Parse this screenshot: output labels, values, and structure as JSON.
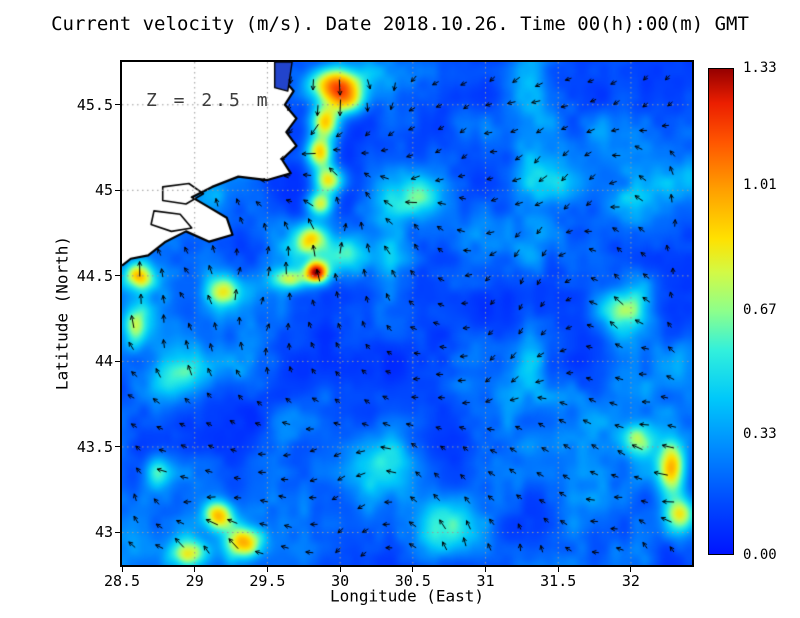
{
  "title": "Current velocity (m/s). Date 2018.10.26. Time 00(h):00(m) GMT",
  "annotation": "Z = 2.5 m",
  "axes": {
    "xlabel": "Longitude (East)",
    "ylabel": "Latitude (North)",
    "x_ticks": [
      28.5,
      29,
      29.5,
      30,
      30.5,
      31,
      31.5,
      32
    ],
    "x_tick_labels": [
      "28.5",
      "29",
      "29.5",
      "30",
      "30.5",
      "31",
      "31.5",
      "32"
    ],
    "y_ticks": [
      43,
      43.5,
      44,
      44.5,
      45,
      45.5
    ],
    "y_tick_labels": [
      "43",
      "43.5",
      "44",
      "44.5",
      "45",
      "45.5"
    ],
    "grid": "dotted"
  },
  "colorbar": {
    "min": 0,
    "max": 1.33,
    "tick_labels": [
      "1.33",
      "1.01",
      "0.67",
      "0.33",
      "0.00"
    ],
    "tick_values": [
      1.33,
      1.01,
      0.67,
      0.33,
      0.0
    ]
  },
  "colors": {
    "background": "#ffffff",
    "land": "#ffffff",
    "coast": "#000000",
    "grid": "#9a9a9a",
    "arrow": "#000000",
    "river": "#2244cc",
    "annotation": "#3d3d3d"
  },
  "chart_data": {
    "type": "heatmap",
    "quantity": "current speed",
    "units": "m/s",
    "depth_m": 2.5,
    "date": "2018.10.26",
    "time_gmt": "00:00",
    "x_range": [
      28.5,
      32.42
    ],
    "y_range": [
      42.81,
      45.75
    ],
    "value_range": [
      0,
      1.33
    ],
    "colormap_stops": [
      [
        0.0,
        0,
        20,
        255
      ],
      [
        0.1,
        0,
        70,
        255
      ],
      [
        0.22,
        0,
        140,
        255
      ],
      [
        0.32,
        0,
        200,
        250
      ],
      [
        0.42,
        50,
        240,
        220
      ],
      [
        0.5,
        140,
        255,
        140
      ],
      [
        0.58,
        210,
        250,
        70
      ],
      [
        0.65,
        255,
        225,
        0
      ],
      [
        0.75,
        255,
        160,
        0
      ],
      [
        0.85,
        255,
        85,
        0
      ],
      [
        0.93,
        235,
        30,
        0
      ],
      [
        1.0,
        150,
        0,
        0
      ]
    ],
    "noise": {
      "seed": 7,
      "scale": 3.0,
      "base": 0.05,
      "amp": 0.5,
      "gamma": 1.8
    },
    "hotspots": [
      [
        29.97,
        45.62,
        0.18,
        0.1,
        0.95
      ],
      [
        30.05,
        45.52,
        0.12,
        0.08,
        0.55
      ],
      [
        29.9,
        45.4,
        0.1,
        0.1,
        0.75
      ],
      [
        29.86,
        45.22,
        0.09,
        0.09,
        0.8
      ],
      [
        29.92,
        45.06,
        0.1,
        0.08,
        0.75
      ],
      [
        29.86,
        44.92,
        0.09,
        0.07,
        0.65
      ],
      [
        29.8,
        44.72,
        0.1,
        0.08,
        0.55
      ],
      [
        29.84,
        44.52,
        0.08,
        0.06,
        1.05
      ],
      [
        29.65,
        44.48,
        0.12,
        0.06,
        0.5
      ],
      [
        30.05,
        44.62,
        0.15,
        0.1,
        0.35
      ],
      [
        29.2,
        44.42,
        0.12,
        0.09,
        0.6
      ],
      [
        28.62,
        44.5,
        0.1,
        0.08,
        0.7
      ],
      [
        28.6,
        44.2,
        0.09,
        0.12,
        0.5
      ],
      [
        28.9,
        43.9,
        0.2,
        0.15,
        0.35
      ],
      [
        29.16,
        43.1,
        0.1,
        0.09,
        0.75
      ],
      [
        29.34,
        42.94,
        0.13,
        0.09,
        0.7
      ],
      [
        28.95,
        42.88,
        0.15,
        0.08,
        0.55
      ],
      [
        28.75,
        43.35,
        0.1,
        0.1,
        0.45
      ],
      [
        32.28,
        43.38,
        0.1,
        0.16,
        0.85
      ],
      [
        32.34,
        43.1,
        0.1,
        0.1,
        0.6
      ],
      [
        32.05,
        43.55,
        0.12,
        0.1,
        0.45
      ],
      [
        31.95,
        44.3,
        0.18,
        0.12,
        0.4
      ],
      [
        31.55,
        45.05,
        0.2,
        0.12,
        0.3
      ],
      [
        30.55,
        44.95,
        0.15,
        0.1,
        0.3
      ],
      [
        30.3,
        43.4,
        0.3,
        0.2,
        0.25
      ],
      [
        30.75,
        43.05,
        0.25,
        0.15,
        0.3
      ]
    ],
    "coastline": [
      [
        29.66,
        45.75
      ],
      [
        29.6,
        45.66
      ],
      [
        29.68,
        45.58
      ],
      [
        29.62,
        45.5
      ],
      [
        29.7,
        45.42
      ],
      [
        29.63,
        45.34
      ],
      [
        29.7,
        45.26
      ],
      [
        29.6,
        45.18
      ],
      [
        29.66,
        45.1
      ],
      [
        29.5,
        45.06
      ],
      [
        29.3,
        45.08
      ],
      [
        29.12,
        45.02
      ],
      [
        28.98,
        44.96
      ],
      [
        29.1,
        44.9
      ],
      [
        29.22,
        44.84
      ],
      [
        29.26,
        44.74
      ],
      [
        29.1,
        44.7
      ],
      [
        28.94,
        44.76
      ],
      [
        28.8,
        44.7
      ],
      [
        28.68,
        44.62
      ],
      [
        28.56,
        44.6
      ],
      [
        28.5,
        44.56
      ]
    ],
    "lakes": [
      [
        [
          28.78,
          45.02
        ],
        [
          28.96,
          45.04
        ],
        [
          29.06,
          44.98
        ],
        [
          28.94,
          44.92
        ],
        [
          28.78,
          44.94
        ]
      ],
      [
        [
          28.72,
          44.88
        ],
        [
          28.9,
          44.86
        ],
        [
          28.98,
          44.78
        ],
        [
          28.84,
          44.76
        ],
        [
          28.7,
          44.8
        ]
      ]
    ],
    "river": [
      [
        29.55,
        45.75
      ],
      [
        29.67,
        45.75
      ],
      [
        29.64,
        45.58
      ],
      [
        29.55,
        45.6
      ]
    ],
    "arrows": {
      "dx": 0.175,
      "dy": 0.145,
      "min_len": 5,
      "max_len": 19
    }
  }
}
